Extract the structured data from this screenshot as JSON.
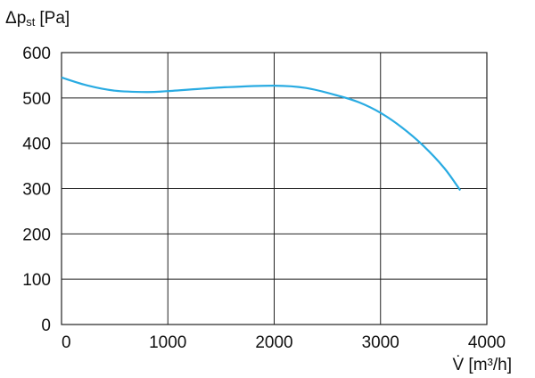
{
  "chart_data": {
    "type": "line",
    "y_label": {
      "symbol": "Δp",
      "subscript": "st",
      "unit": "[Pa]"
    },
    "x_label": "V̇ [m³/h]",
    "x": [
      0,
      250,
      500,
      800,
      1000,
      1500,
      2000,
      2300,
      2600,
      2800,
      3000,
      3200,
      3400,
      3600,
      3750
    ],
    "values": [
      545,
      527,
      516,
      513,
      515,
      523,
      527,
      522,
      505,
      490,
      467,
      435,
      395,
      345,
      296
    ],
    "color": "#29abe2",
    "xlim": [
      0,
      4000
    ],
    "xticks": [
      0,
      1000,
      2000,
      3000,
      4000
    ],
    "ylim": [
      0,
      600
    ],
    "yticks": [
      0,
      100,
      200,
      300,
      400,
      500,
      600
    ],
    "grid": true
  }
}
